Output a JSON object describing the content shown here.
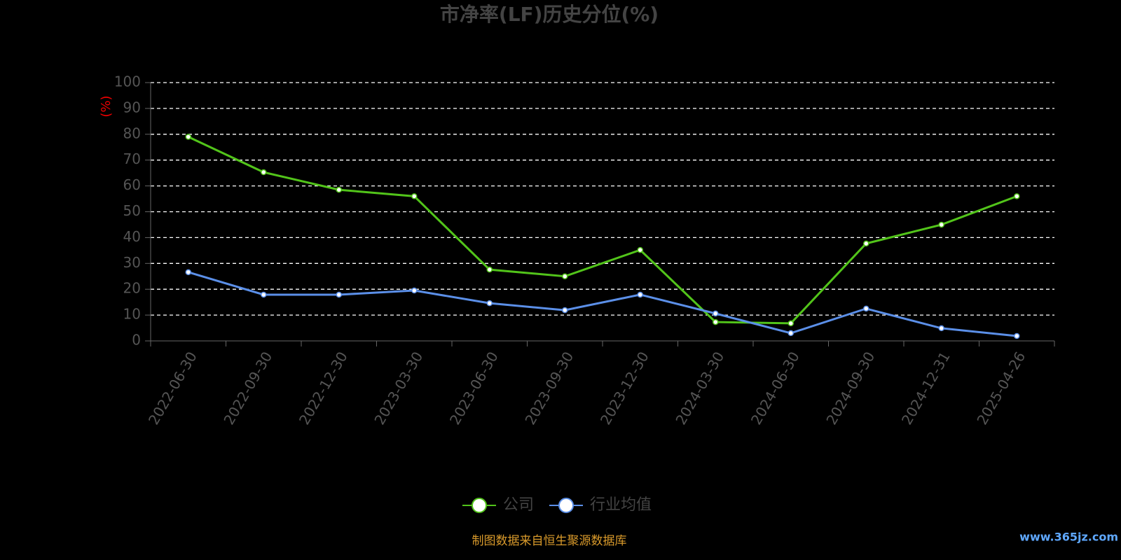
{
  "chart_data": {
    "type": "line",
    "title": "市净率(LF)历史分位(%)",
    "y_label": "(%)",
    "categories": [
      "2022-06-30",
      "2022-09-30",
      "2022-12-30",
      "2023-03-30",
      "2023-06-30",
      "2023-09-30",
      "2023-12-30",
      "2024-03-30",
      "2024-06-30",
      "2024-09-30",
      "2024-12-31",
      "2025-04-26"
    ],
    "series": [
      {
        "name": "公司",
        "color": "#52c41a",
        "values": [
          79,
          65.3,
          58.5,
          56,
          27.6,
          25,
          35.2,
          7.3,
          6.8,
          37.7,
          45,
          56
        ]
      },
      {
        "name": "行业均值",
        "color": "#5b8fe8",
        "values": [
          26.6,
          17.9,
          17.9,
          19.5,
          14.6,
          11.9,
          17.9,
          10.6,
          3,
          12.5,
          4.9,
          1.9
        ]
      }
    ],
    "ylim": [
      0,
      100
    ],
    "yticks": [
      0,
      10,
      20,
      30,
      40,
      50,
      60,
      70,
      80,
      90,
      100
    ],
    "grid": true,
    "source": "制图数据来自恒生聚源数据库",
    "watermark": "www.365jz.com"
  }
}
